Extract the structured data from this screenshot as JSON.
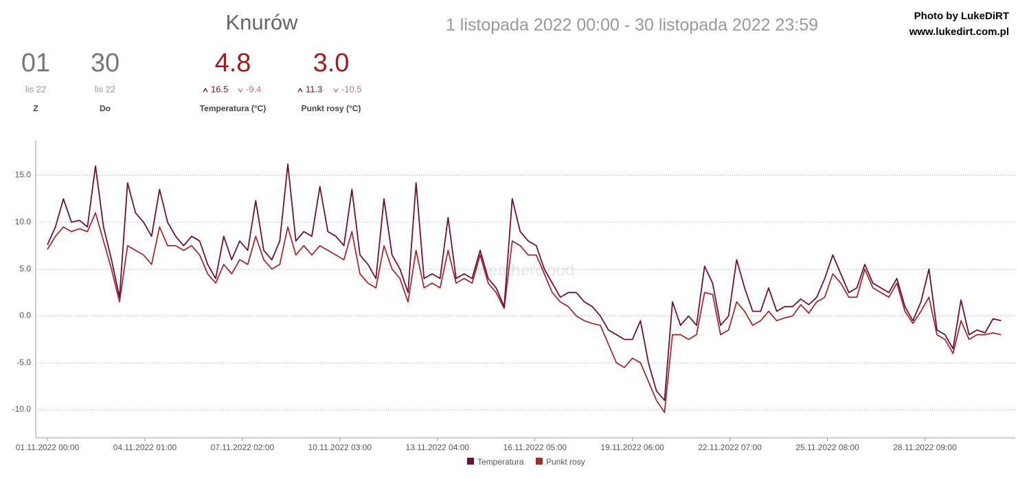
{
  "header": {
    "title": "Knurów",
    "date_range": "1 listopada 2022 00:00 - 30 listopada 2022 23:59",
    "credit": [
      "Photo by LukeDiRT",
      "www.lukedirt.com.pl"
    ],
    "watermark": "weathercloud"
  },
  "stats": [
    {
      "value": "01",
      "sub": "lis 22",
      "label": "Z"
    },
    {
      "value": "30",
      "sub": "lis 22",
      "label": "Do"
    },
    {
      "value": "4.8",
      "max": "16.5",
      "min": "-9.4",
      "label": "Temperatura (°C)"
    },
    {
      "value": "3.0",
      "max": "11.3",
      "min": "-10.5",
      "label": "Punkt rosy (°C)"
    }
  ],
  "chart_data": {
    "type": "line",
    "x": [
      "01.11.2022 00:00",
      "01.11.2022 06:00",
      "01.11.2022 12:00",
      "01.11.2022 18:00",
      "02.11.2022 00:00",
      "02.11.2022 06:00",
      "02.11.2022 12:00",
      "02.11.2022 18:00",
      "03.11.2022 00:00",
      "03.11.2022 06:00",
      "03.11.2022 12:00",
      "03.11.2022 18:00",
      "04.11.2022 00:00",
      "04.11.2022 06:00",
      "04.11.2022 12:00",
      "04.11.2022 18:00",
      "05.11.2022 00:00",
      "05.11.2022 06:00",
      "05.11.2022 12:00",
      "05.11.2022 18:00",
      "06.11.2022 00:00",
      "06.11.2022 06:00",
      "06.11.2022 12:00",
      "06.11.2022 18:00",
      "07.11.2022 00:00",
      "07.11.2022 06:00",
      "07.11.2022 12:00",
      "07.11.2022 18:00",
      "08.11.2022 00:00",
      "08.11.2022 06:00",
      "08.11.2022 12:00",
      "08.11.2022 18:00",
      "09.11.2022 00:00",
      "09.11.2022 06:00",
      "09.11.2022 12:00",
      "09.11.2022 18:00",
      "10.11.2022 00:00",
      "10.11.2022 06:00",
      "10.11.2022 12:00",
      "10.11.2022 18:00",
      "11.11.2022 00:00",
      "11.11.2022 06:00",
      "11.11.2022 12:00",
      "11.11.2022 18:00",
      "12.11.2022 00:00",
      "12.11.2022 06:00",
      "12.11.2022 12:00",
      "12.11.2022 18:00",
      "13.11.2022 00:00",
      "13.11.2022 06:00",
      "13.11.2022 12:00",
      "13.11.2022 18:00",
      "14.11.2022 00:00",
      "14.11.2022 06:00",
      "14.11.2022 12:00",
      "14.11.2022 18:00",
      "15.11.2022 00:00",
      "15.11.2022 06:00",
      "15.11.2022 12:00",
      "15.11.2022 18:00",
      "16.11.2022 00:00",
      "16.11.2022 06:00",
      "16.11.2022 12:00",
      "16.11.2022 18:00",
      "17.11.2022 00:00",
      "17.11.2022 06:00",
      "17.11.2022 12:00",
      "17.11.2022 18:00",
      "18.11.2022 00:00",
      "18.11.2022 06:00",
      "18.11.2022 12:00",
      "18.11.2022 18:00",
      "19.11.2022 00:00",
      "19.11.2022 06:00",
      "19.11.2022 12:00",
      "19.11.2022 18:00",
      "20.11.2022 00:00",
      "20.11.2022 06:00",
      "20.11.2022 12:00",
      "20.11.2022 18:00",
      "21.11.2022 00:00",
      "21.11.2022 06:00",
      "21.11.2022 12:00",
      "21.11.2022 18:00",
      "22.11.2022 00:00",
      "22.11.2022 06:00",
      "22.11.2022 12:00",
      "22.11.2022 18:00",
      "23.11.2022 00:00",
      "23.11.2022 06:00",
      "23.11.2022 12:00",
      "23.11.2022 18:00",
      "24.11.2022 00:00",
      "24.11.2022 06:00",
      "24.11.2022 12:00",
      "24.11.2022 18:00",
      "25.11.2022 00:00",
      "25.11.2022 06:00",
      "25.11.2022 12:00",
      "25.11.2022 18:00",
      "26.11.2022 00:00",
      "26.11.2022 06:00",
      "26.11.2022 12:00",
      "26.11.2022 18:00",
      "27.11.2022 00:00",
      "27.11.2022 06:00",
      "27.11.2022 12:00",
      "27.11.2022 18:00",
      "28.11.2022 00:00",
      "28.11.2022 06:00",
      "28.11.2022 12:00",
      "28.11.2022 18:00",
      "29.11.2022 00:00",
      "29.11.2022 06:00",
      "29.11.2022 12:00",
      "29.11.2022 18:00",
      "30.11.2022 00:00",
      "30.11.2022 06:00",
      "30.11.2022 12:00",
      "30.11.2022 18:00"
    ],
    "series": [
      {
        "name": "Temperatura",
        "color": "#6b0f3a",
        "values": [
          7.6,
          9.5,
          12.5,
          10.0,
          10.2,
          9.5,
          16,
          9.5,
          6,
          2,
          14.2,
          11,
          10,
          8.5,
          13.5,
          10,
          8.5,
          7.5,
          8.5,
          8,
          5.5,
          4,
          8.5,
          6,
          8,
          7,
          12.3,
          7,
          6,
          8,
          16.2,
          8,
          9,
          8.5,
          13.8,
          9,
          8.5,
          7.5,
          13.5,
          6.5,
          5.5,
          4,
          12.5,
          6.5,
          5,
          2.5,
          14.2,
          4,
          4.5,
          4,
          10.5,
          4,
          4.5,
          4,
          7,
          4,
          3,
          1,
          12.5,
          9,
          8,
          7.5,
          5,
          3.5,
          2,
          2.5,
          2.5,
          1.5,
          1,
          0,
          -1.5,
          -2,
          -2.5,
          -2.5,
          -0.5,
          -5,
          -8,
          -9,
          1.5,
          -1,
          0,
          -1,
          5.3,
          3.5,
          -1,
          0,
          6,
          3,
          0.5,
          0.5,
          3,
          0.5,
          1,
          1,
          1.8,
          1.2,
          2,
          4,
          6.5,
          4.5,
          2.5,
          3,
          5.5,
          3.5,
          3,
          2.5,
          4,
          1,
          -0.5,
          1.5,
          5,
          -1.5,
          -2,
          -3.5,
          1.7,
          -2,
          -1.5,
          -1.8,
          -0.3,
          -0.5
        ]
      },
      {
        "name": "Punkt rosy",
        "color": "#a52a2a",
        "values": [
          7.1,
          8.5,
          9.5,
          9.0,
          9.3,
          9,
          11,
          8,
          5,
          1.5,
          7.5,
          7,
          6.5,
          5.5,
          9.5,
          7.5,
          7.5,
          7,
          7.5,
          6.5,
          4.5,
          3.5,
          5.5,
          4.5,
          6,
          5.5,
          8.5,
          6,
          5,
          5.5,
          9.5,
          6.5,
          7.5,
          6.5,
          7.5,
          7,
          6.5,
          6,
          9,
          4.5,
          3.5,
          3,
          7.5,
          5,
          4,
          1.5,
          7,
          3,
          3.5,
          3,
          7,
          3.5,
          4,
          3.5,
          6.5,
          3.5,
          2.5,
          0.8,
          8,
          7.5,
          6.5,
          6.5,
          4.5,
          2.5,
          1.5,
          1,
          0,
          -0.5,
          -0.8,
          -1,
          -3,
          -5,
          -5.5,
          -4.5,
          -5,
          -7,
          -9,
          -10.3,
          -2,
          -2,
          -2.5,
          -2,
          2.5,
          2.3,
          -2,
          -1.5,
          1.5,
          0.5,
          -1,
          -0.5,
          0.5,
          -0.5,
          -0.2,
          0,
          1.2,
          0.3,
          1.5,
          2,
          4.5,
          3.5,
          2,
          2,
          5,
          3,
          2.5,
          2,
          3.5,
          0.5,
          -0.8,
          0.5,
          2,
          -2,
          -2.5,
          -4,
          -0.5,
          -2.5,
          -2,
          -2,
          -1.8,
          -2
        ]
      }
    ],
    "xlim": [
      "01.11.2022 00:00",
      "30.11.2022 23:59"
    ],
    "xticks": [
      "01.11.2022 00:00",
      "04.11.2022 01:00",
      "07.11.2022 02:00",
      "10.11.2022 03:00",
      "13.11.2022 04:00",
      "16.11.2022 05:00",
      "19.11.2022 06:00",
      "22.11.2022 07:00",
      "25.11.2022 08:00",
      "28.11.2022 09:00"
    ],
    "ylim": [
      -13,
      18.7
    ],
    "yticks": [
      {
        "value": -10,
        "label": "-10.0"
      },
      {
        "value": -5,
        "label": "-5.0"
      },
      {
        "value": 0,
        "label": "0.0"
      },
      {
        "value": 5,
        "label": "5.0"
      },
      {
        "value": 10,
        "label": "10.0"
      },
      {
        "value": 15,
        "label": "15.0"
      }
    ],
    "grid": true,
    "legend": "bottom"
  }
}
